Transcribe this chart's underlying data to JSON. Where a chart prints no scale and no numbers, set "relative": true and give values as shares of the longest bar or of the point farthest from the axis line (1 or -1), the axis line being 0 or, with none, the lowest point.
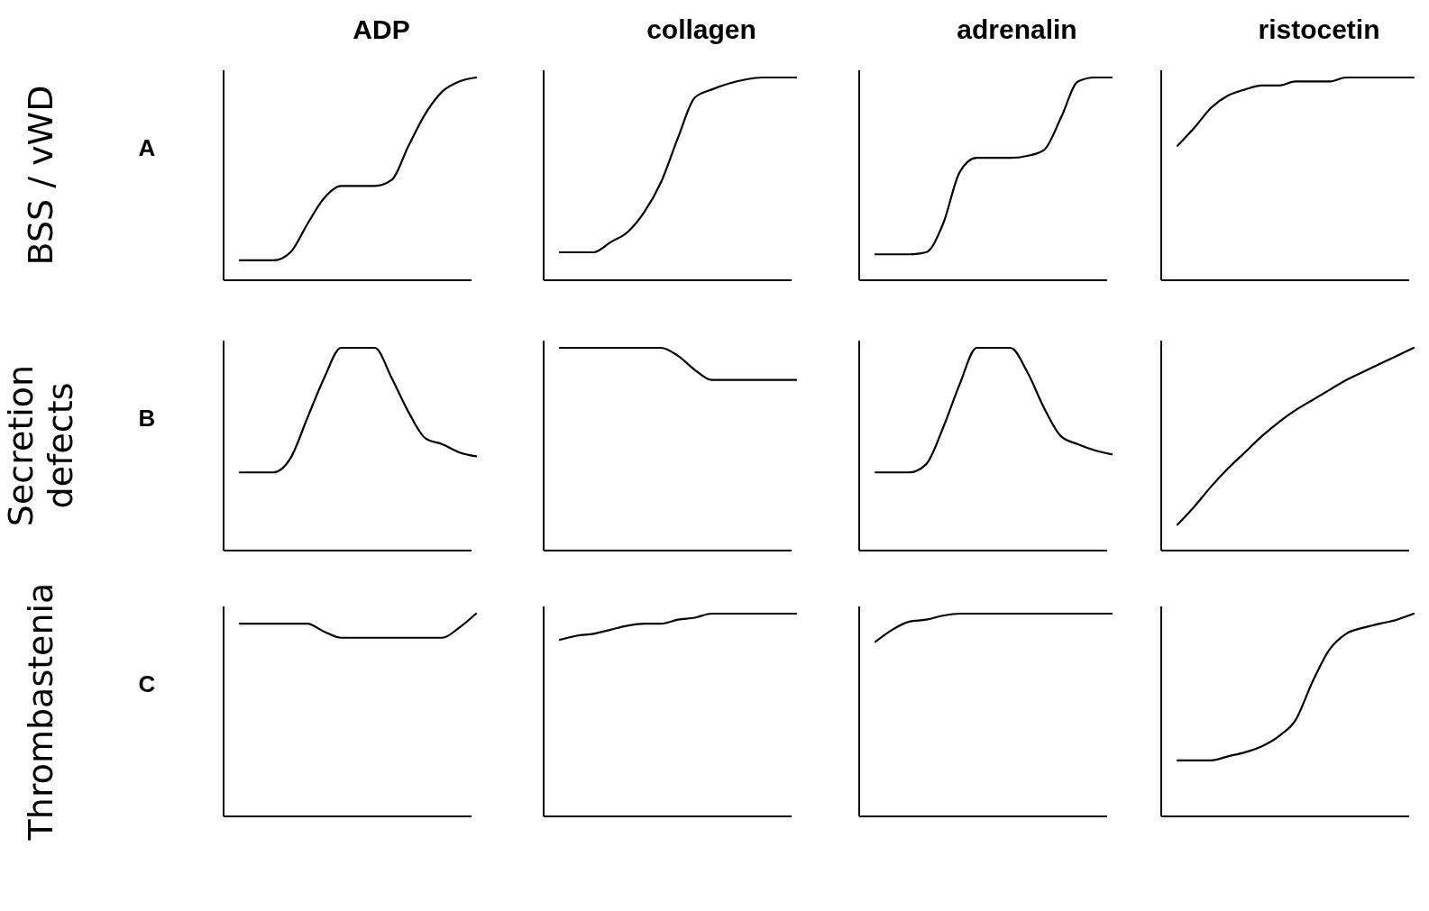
{
  "chart_data": [
    {
      "type": "line",
      "title": "ADP",
      "ylabel": "BSS / vWD",
      "annotations": [
        "A"
      ],
      "relative": true,
      "color": "#000000",
      "categories": [
        null,
        null,
        null,
        null,
        null,
        null,
        null,
        null,
        null,
        null,
        null,
        null,
        null,
        null,
        null
      ],
      "values": [
        0.09,
        0.09,
        0.09,
        0.13,
        0.27,
        0.4,
        0.46,
        0.46,
        0.46,
        0.49,
        0.66,
        0.82,
        0.93,
        0.98,
        1
      ]
    },
    {
      "type": "line",
      "title": "collagen",
      "relative": true,
      "color": "#000000",
      "categories": [
        null,
        null,
        null,
        null,
        null,
        null,
        null,
        null,
        null,
        null,
        null,
        null,
        null,
        null,
        null
      ],
      "values": [
        0.13,
        0.13,
        0.13,
        0.18,
        0.23,
        0.33,
        0.48,
        0.7,
        0.9,
        0.94,
        0.97,
        0.99,
        1,
        1,
        1
      ]
    },
    {
      "type": "line",
      "title": "adrenalin",
      "relative": true,
      "color": "#000000",
      "categories": [
        null,
        null,
        null,
        null,
        null,
        null,
        null,
        null,
        null,
        null,
        null,
        null,
        null,
        null,
        null
      ],
      "values": [
        0.12,
        0.12,
        0.12,
        0.13,
        0.27,
        0.53,
        0.6,
        0.6,
        0.6,
        0.61,
        0.64,
        0.8,
        0.98,
        1,
        1
      ]
    },
    {
      "type": "line",
      "title": "ristocetin",
      "relative": true,
      "color": "#000000",
      "categories": [
        null,
        null,
        null,
        null,
        null,
        null,
        null,
        null,
        null,
        null,
        null,
        null,
        null,
        null,
        null
      ],
      "values": [
        0.66,
        0.75,
        0.85,
        0.91,
        0.94,
        0.96,
        0.96,
        0.98,
        0.98,
        0.98,
        1,
        1,
        1,
        1,
        1
      ]
    },
    {
      "type": "line",
      "ylabel": "Secretion defects",
      "annotations": [
        "B"
      ],
      "relative": true,
      "color": "#000000",
      "categories": [
        null,
        null,
        null,
        null,
        null,
        null,
        null,
        null,
        null,
        null,
        null,
        null,
        null,
        null,
        null
      ],
      "values": [
        0.38,
        0.38,
        0.38,
        0.45,
        0.65,
        0.85,
        1,
        1,
        1,
        0.85,
        0.68,
        0.55,
        0.52,
        0.48,
        0.46
      ]
    },
    {
      "type": "line",
      "relative": true,
      "color": "#000000",
      "categories": [
        null,
        null,
        null,
        null,
        null,
        null,
        null,
        null,
        null,
        null,
        null,
        null,
        null,
        null,
        null
      ],
      "values": [
        1,
        1,
        1,
        1,
        1,
        1,
        1,
        0.96,
        0.89,
        0.84,
        0.84,
        0.84,
        0.84,
        0.84,
        0.84
      ]
    },
    {
      "type": "line",
      "relative": true,
      "color": "#000000",
      "categories": [
        null,
        null,
        null,
        null,
        null,
        null,
        null,
        null,
        null,
        null,
        null,
        null,
        null,
        null,
        null
      ],
      "values": [
        0.38,
        0.38,
        0.38,
        0.42,
        0.6,
        0.82,
        1,
        1,
        1,
        0.88,
        0.7,
        0.56,
        0.52,
        0.49,
        0.47
      ]
    },
    {
      "type": "line",
      "relative": true,
      "color": "#000000",
      "categories": [
        null,
        null,
        null,
        null,
        null,
        null,
        null,
        null,
        null,
        null,
        null,
        null,
        null,
        null,
        null
      ],
      "values": [
        0.12,
        0.21,
        0.31,
        0.4,
        0.48,
        0.56,
        0.63,
        0.69,
        0.74,
        0.79,
        0.84,
        0.88,
        0.92,
        0.96,
        1
      ]
    },
    {
      "type": "line",
      "ylabel": "Thrombastenia",
      "annotations": [
        "C"
      ],
      "relative": true,
      "color": "#000000",
      "categories": [
        null,
        null,
        null,
        null,
        null,
        null,
        null,
        null,
        null,
        null,
        null,
        null,
        null,
        null,
        null
      ],
      "values": [
        0.95,
        0.95,
        0.95,
        0.95,
        0.95,
        0.91,
        0.88,
        0.88,
        0.88,
        0.88,
        0.88,
        0.88,
        0.88,
        0.93,
        1
      ]
    },
    {
      "type": "line",
      "relative": true,
      "color": "#000000",
      "categories": [
        null,
        null,
        null,
        null,
        null,
        null,
        null,
        null,
        null,
        null,
        null,
        null,
        null,
        null,
        null
      ],
      "values": [
        0.87,
        0.89,
        0.9,
        0.92,
        0.94,
        0.95,
        0.95,
        0.97,
        0.98,
        1,
        1,
        1,
        1,
        1,
        1
      ]
    },
    {
      "type": "line",
      "relative": true,
      "color": "#000000",
      "categories": [
        null,
        null,
        null,
        null,
        null,
        null,
        null,
        null,
        null,
        null,
        null,
        null,
        null,
        null,
        null
      ],
      "values": [
        0.86,
        0.92,
        0.96,
        0.97,
        0.99,
        1,
        1,
        1,
        1,
        1,
        1,
        1,
        1,
        1,
        1
      ]
    },
    {
      "type": "line",
      "relative": true,
      "color": "#000000",
      "categories": [
        null,
        null,
        null,
        null,
        null,
        null,
        null,
        null,
        null,
        null,
        null,
        null,
        null,
        null,
        null
      ],
      "values": [
        0.27,
        0.27,
        0.27,
        0.29,
        0.31,
        0.34,
        0.39,
        0.47,
        0.66,
        0.82,
        0.9,
        0.93,
        0.95,
        0.97,
        1
      ]
    }
  ]
}
